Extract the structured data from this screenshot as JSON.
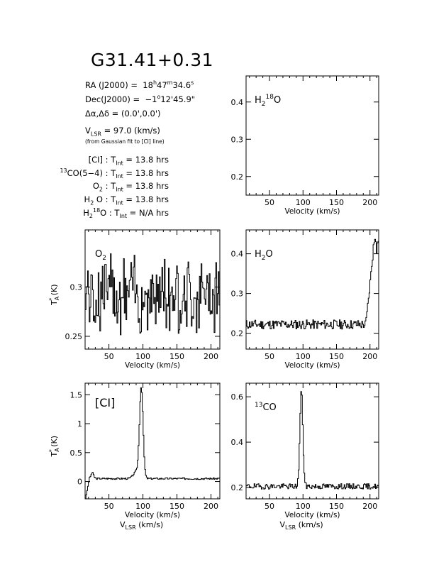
{
  "source": {
    "title": "G31.41+0.31",
    "ra_label": "RA (J2000) =",
    "ra_h": "18",
    "ra_h_unit": "h",
    "ra_m": "47",
    "ra_m_unit": "m",
    "ra_s": "34.6",
    "ra_s_unit": "s",
    "dec_label": "Dec(J2000) =",
    "dec_deg": "−1",
    "dec_deg_unit": "o",
    "dec_rest": "12'45.9\"",
    "offset_label": "Δα,Δδ =",
    "offset_value": "(0.0',0.0')",
    "vlsr_label": "V",
    "vlsr_sub": "LSR",
    "vlsr_value": "= 97.0 (km/s)",
    "vlsr_note": "(from Gaussian fit to [CI] line)"
  },
  "integrations": [
    {
      "pre": "",
      "sup": "",
      "main": "[CI]",
      "sub": "",
      "post": ": T",
      "tsub": "Int",
      "val": "= 13.8 hrs"
    },
    {
      "pre": "",
      "sup": "13",
      "main": "CO(5−4)",
      "sub": "",
      "post": ": T",
      "tsub": "Int",
      "val": "= 13.8 hrs"
    },
    {
      "pre": "",
      "sup": "",
      "main": "O",
      "sub": "2",
      "post": ": T",
      "tsub": "Int",
      "val": "= 13.8 hrs"
    },
    {
      "pre": "",
      "sup": "",
      "main": "H",
      "sub": "2",
      "post": "O : T",
      "tsub": "Int",
      "val": "= 13.8 hrs"
    },
    {
      "pre": "H",
      "sup": "18",
      "main": "O",
      "sub": "2",
      "post": ": T",
      "tsub": "Int",
      "val": "= N/A hrs"
    }
  ],
  "chart_data": [
    {
      "id": "h218o",
      "type": "line",
      "label_main": "H",
      "label_sub": "2",
      "label_sup": "18",
      "label_tail": "O",
      "xlabel": "Velocity (km/s)",
      "ylabel": "",
      "xlim": [
        15,
        213
      ],
      "ylim": [
        0.15,
        0.47
      ],
      "xticks": [
        50,
        100,
        150,
        200
      ],
      "yticks": [
        0.2,
        0.3,
        0.4
      ],
      "series": []
    },
    {
      "id": "o2",
      "type": "line",
      "label_main": "O",
      "label_sub": "2",
      "xlabel": "Velocity (km/s)",
      "ylabel": "T*A (K)",
      "xlim": [
        15,
        213
      ],
      "ylim": [
        0.237,
        0.358
      ],
      "xticks": [
        50,
        100,
        150,
        200
      ],
      "yticks": [
        0.25,
        0.3
      ],
      "noise": {
        "mean": 0.293,
        "amp": 0.026,
        "seed": 7,
        "step": 1.2,
        "shape": "flat"
      }
    },
    {
      "id": "h2o",
      "type": "line",
      "label_main": "H",
      "label_sub": "2",
      "label_tail": "O",
      "xlabel": "Velocity (km/s)",
      "ylabel": "",
      "xlim": [
        15,
        213
      ],
      "ylim": [
        0.16,
        0.46
      ],
      "xticks": [
        50,
        100,
        150,
        200
      ],
      "yticks": [
        0.2,
        0.3,
        0.4
      ],
      "noise": {
        "mean": 0.222,
        "amp": 0.012,
        "seed": 11,
        "step": 1.2,
        "shape": "h2o_wing"
      }
    },
    {
      "id": "ci",
      "type": "line",
      "label_main": "[CI]",
      "xlabel": "Velocity (km/s)",
      "xlabel2": "V",
      "xlabel2_sub": "LSR",
      "xlabel2_tail": " (km/s)",
      "ylabel": "T*A (K)",
      "xlim": [
        15,
        213
      ],
      "ylim": [
        -0.3,
        1.7
      ],
      "xticks": [
        50,
        100,
        150,
        200
      ],
      "yticks": [
        0,
        0.5,
        1,
        1.5
      ],
      "noise": {
        "mean": 0.05,
        "amp": 0.015,
        "seed": 3,
        "step": 1.2,
        "shape": "ci_peak",
        "peak_v": 97,
        "peak_h": 1.55,
        "peak_w": 2.6
      }
    },
    {
      "id": "co13",
      "type": "line",
      "label_main": "CO",
      "label_sup": "13",
      "xlabel": "Velocity (km/s)",
      "xlabel2": "V",
      "xlabel2_sub": "LSR",
      "xlabel2_tail": " (km/s)",
      "ylabel": "",
      "xlim": [
        15,
        213
      ],
      "ylim": [
        0.15,
        0.66
      ],
      "xticks": [
        50,
        100,
        150,
        200
      ],
      "yticks": [
        0.2,
        0.4,
        0.6
      ],
      "noise": {
        "mean": 0.205,
        "amp": 0.012,
        "seed": 19,
        "step": 1.2,
        "shape": "co_peak",
        "peak_v": 97,
        "peak_h": 0.42,
        "peak_w": 2.2
      }
    }
  ]
}
